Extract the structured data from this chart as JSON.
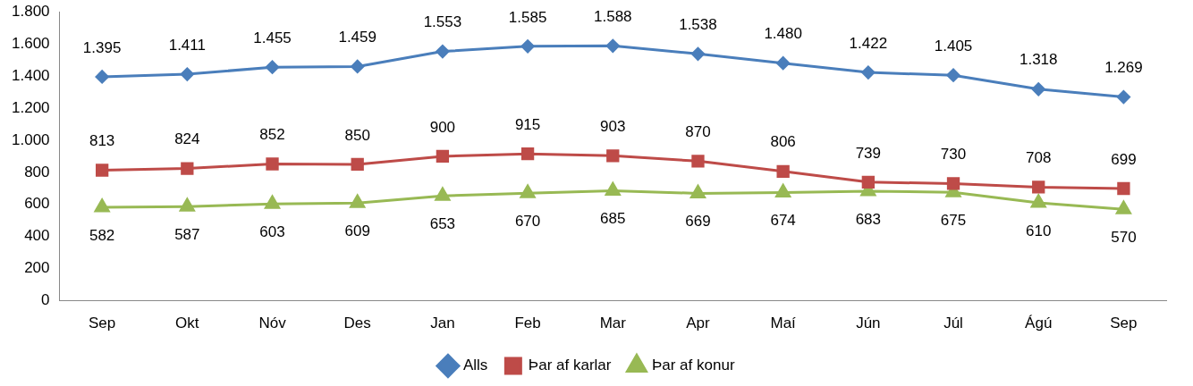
{
  "chart_data": {
    "type": "line",
    "categories": [
      "Sep",
      "Okt",
      "Nóv",
      "Des",
      "Jan",
      "Feb",
      "Mar",
      "Apr",
      "Maí",
      "Jún",
      "Júl",
      "Ágú",
      "Sep"
    ],
    "series": [
      {
        "name": "Alls",
        "color": "#4a7ebb",
        "marker": "diamond",
        "values": [
          1395,
          1411,
          1455,
          1459,
          1553,
          1585,
          1588,
          1538,
          1480,
          1422,
          1405,
          1318,
          1269
        ],
        "value_labels": [
          "1.395",
          "1.411",
          "1.455",
          "1.459",
          "1.553",
          "1.585",
          "1.588",
          "1.538",
          "1.480",
          "1.422",
          "1.405",
          "1.318",
          "1.269"
        ]
      },
      {
        "name": "Þar af karlar",
        "color": "#be4b48",
        "marker": "square",
        "values": [
          813,
          824,
          852,
          850,
          900,
          915,
          903,
          870,
          806,
          739,
          730,
          708,
          699
        ],
        "value_labels": [
          "813",
          "824",
          "852",
          "850",
          "900",
          "915",
          "903",
          "870",
          "806",
          "739",
          "730",
          "708",
          "699"
        ]
      },
      {
        "name": "Þar af konur",
        "color": "#98b954",
        "marker": "triangle",
        "values": [
          582,
          587,
          603,
          609,
          653,
          670,
          685,
          669,
          674,
          683,
          675,
          610,
          570
        ],
        "value_labels": [
          "582",
          "587",
          "603",
          "609",
          "653",
          "670",
          "685",
          "669",
          "674",
          "683",
          "675",
          "610",
          "570"
        ]
      }
    ],
    "ylim": [
      0,
      1800
    ],
    "yticks": [
      0,
      200,
      400,
      600,
      800,
      {
        "value": 1000,
        "label": "1.000"
      },
      {
        "value": 1200,
        "label": "1.200"
      },
      {
        "value": 1400,
        "label": "1.400"
      },
      {
        "value": 1600,
        "label": "1.600"
      },
      {
        "value": 1800,
        "label": "1.800"
      }
    ],
    "grid": false,
    "legend": "bottom"
  }
}
